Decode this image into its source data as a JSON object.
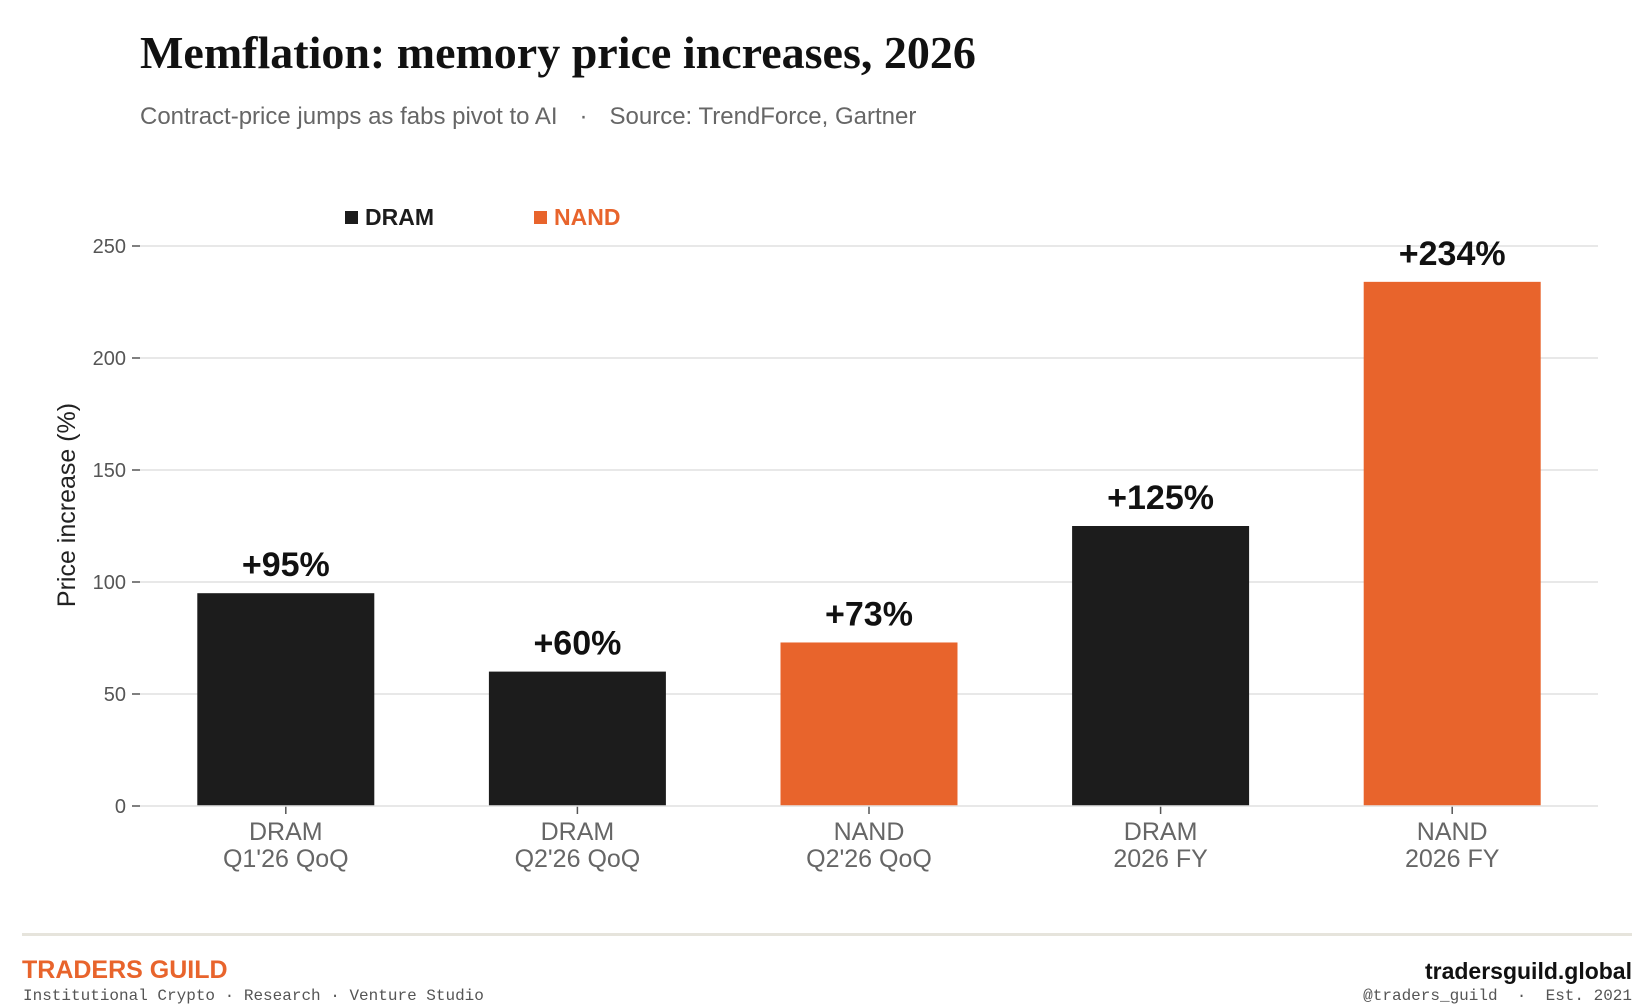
{
  "header": {
    "title": "Memflation: memory price increases, 2026",
    "subtitle": "Contract-price jumps as fabs pivot to AI",
    "separator": "·",
    "source": "Source: TrendForce, Gartner"
  },
  "chart_data": {
    "type": "bar",
    "title": "Memflation: memory price increases, 2026",
    "subtitle": "Contract-price jumps as fabs pivot to AI · Source: TrendForce, Gartner",
    "ylabel": "Price increase (%)",
    "xlabel": "",
    "ylim": [
      0,
      250
    ],
    "yticks": [
      0,
      50,
      100,
      150,
      200,
      250
    ],
    "grid": true,
    "legend": {
      "placement": "top-left",
      "entries": [
        {
          "name": "DRAM",
          "color": "#1c1c1c"
        },
        {
          "name": "NAND",
          "color": "#e8642c"
        }
      ]
    },
    "bars": [
      {
        "line1": "DRAM",
        "line2": "Q1'26 QoQ",
        "value": 95,
        "label": "+95%",
        "series": "DRAM"
      },
      {
        "line1": "DRAM",
        "line2": "Q2'26 QoQ",
        "value": 60,
        "label": "+60%",
        "series": "DRAM"
      },
      {
        "line1": "NAND",
        "line2": "Q2'26 QoQ",
        "value": 73,
        "label": "+73%",
        "series": "NAND"
      },
      {
        "line1": "DRAM",
        "line2": "2026 FY",
        "value": 125,
        "label": "+125%",
        "series": "DRAM"
      },
      {
        "line1": "NAND",
        "line2": "2026 FY",
        "value": 234,
        "label": "+234%",
        "series": "NAND"
      }
    ]
  },
  "colors": {
    "dram": "#1c1c1c",
    "nand": "#e8642c",
    "grid": "#e0e0e0",
    "axis_text": "#555555",
    "accent": "#e8642c"
  },
  "footer": {
    "brand": "TRADERS GUILD",
    "tagline": "Institutional Crypto · Research · Venture Studio",
    "site": "tradersguild.global",
    "handle": "@traders_guild  ·  Est. 2021"
  }
}
